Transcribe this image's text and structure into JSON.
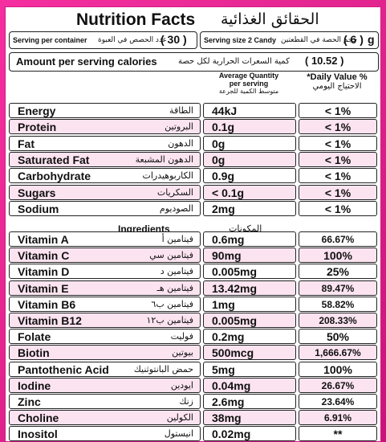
{
  "header": {
    "title_en": "Nutrition Facts",
    "title_ar": "الحقائق الغذائية"
  },
  "serving": {
    "per_container_label": "Serving per container",
    "per_container_ar": "عدد الحصص في العبوة",
    "per_container_value": "( 30 )",
    "size_label": "Serving size 2 Candy",
    "size_ar": "حجم الحصة في القطعتين",
    "size_value": "( 6 )",
    "size_unit": "g"
  },
  "calories": {
    "label": "Amount per serving calories",
    "label_ar": "كمية السعرات الحرارية لكل حصة",
    "value": "( 10.52 )"
  },
  "columns": {
    "avg_en_1": "Average Quantity",
    "avg_en_2": "per serving",
    "avg_ar": "متوسط الكمية للجرعة",
    "dv_en": "*Daily Value %",
    "dv_ar": "الاحتياج اليومي"
  },
  "macros": [
    {
      "name": "Energy",
      "name_ar": "الطاقة",
      "value": "44kJ",
      "dv": "< 1%"
    },
    {
      "name": "Protein",
      "name_ar": "البروتين",
      "value": "0.1g",
      "dv": "< 1%"
    },
    {
      "name": "Fat",
      "name_ar": "الدهون",
      "value": "0g",
      "dv": "< 1%"
    },
    {
      "name": "Saturated Fat",
      "name_ar": "الدهون المشبعة",
      "value": "0g",
      "dv": "< 1%"
    },
    {
      "name": "Carbohydrate",
      "name_ar": "الكاربوهيدرات",
      "value": "0.9g",
      "dv": "< 1%"
    },
    {
      "name": "Sugars",
      "name_ar": "السكريات",
      "value": "< 0.1g",
      "dv": "< 1%"
    },
    {
      "name": "Sodium",
      "name_ar": "الصوديوم",
      "value": "2mg",
      "dv": "< 1%"
    }
  ],
  "ingredients": {
    "label_en": "Ingredients",
    "label_ar": "المكونات"
  },
  "vitamins": [
    {
      "name": "Vitamin A",
      "name_ar": "فيتامين أ",
      "value": "0.6mg",
      "dv": "66.67%"
    },
    {
      "name": "Vitamin C",
      "name_ar": "فيتامين سي",
      "value": "90mg",
      "dv": "100%"
    },
    {
      "name": "Vitamin D",
      "name_ar": "فيتامين د",
      "value": "0.005mg",
      "dv": "25%"
    },
    {
      "name": "Vitamin E",
      "name_ar": "فيتامين هـ",
      "value": "13.42mg",
      "dv": "89.47%"
    },
    {
      "name": "Vitamin B6",
      "name_ar": "فيتامين ب٦",
      "value": "1mg",
      "dv": "58.82%"
    },
    {
      "name": "Vitamin B12",
      "name_ar": "فيتامين ب١٢",
      "value": "0.005mg",
      "dv": "208.33%"
    },
    {
      "name": "Folate",
      "name_ar": "فوليت",
      "value": "0.2mg",
      "dv": "50%"
    },
    {
      "name": "Biotin",
      "name_ar": "بيوتين",
      "value": "500mcg",
      "dv": "1,666.67%"
    },
    {
      "name": "Pantothenic Acid",
      "name_ar": "حمض البانتوثنيك",
      "value": "5mg",
      "dv": "100%"
    },
    {
      "name": "Iodine",
      "name_ar": "ايودين",
      "value": "0.04mg",
      "dv": "26.67%"
    },
    {
      "name": "Zinc",
      "name_ar": "زنك",
      "value": "2.6mg",
      "dv": "23.64%"
    },
    {
      "name": "Choline",
      "name_ar": "الكولين",
      "value": "38mg",
      "dv": "6.91%"
    },
    {
      "name": "Inositol",
      "name_ar": "انيستول",
      "value": "0.02mg",
      "dv": "**"
    }
  ],
  "colors": {
    "background": "#e2258f",
    "row_alt": "#fbe3f0"
  }
}
